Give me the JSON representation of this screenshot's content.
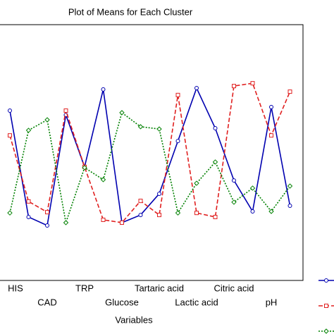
{
  "chart_data": {
    "type": "line",
    "title": "Plot of Means for Each Cluster",
    "x_label": "Variables",
    "categories": [
      "HIS",
      null,
      "CAD",
      null,
      "TRP",
      null,
      "Glucose",
      null,
      "Tartaric acid",
      null,
      "Lactic acid",
      null,
      "Citric acid",
      null,
      "pH",
      null
    ],
    "series": [
      {
        "color": "#0000b0",
        "dash": "solid",
        "marker": "circle",
        "values": [
          6.64,
          2.48,
          2.15,
          6.47,
          4.44,
          7.47,
          2.26,
          2.56,
          3.39,
          5.45,
          7.52,
          5.95,
          3.91,
          2.7,
          6.78,
          2.92
        ]
      },
      {
        "color": "#e02020",
        "dash": "dashed",
        "marker": "square",
        "values": [
          5.67,
          3.09,
          2.67,
          6.64,
          4.44,
          2.37,
          2.26,
          3.11,
          2.56,
          7.25,
          2.64,
          2.48,
          7.6,
          7.71,
          5.67,
          7.38
        ]
      },
      {
        "color": "#008000",
        "dash": "dotted",
        "marker": "diamond",
        "values": [
          2.64,
          5.87,
          6.28,
          2.26,
          4.41,
          3.94,
          6.56,
          6.01,
          5.92,
          2.64,
          3.8,
          4.63,
          3.06,
          3.61,
          2.7,
          3.69
        ]
      }
    ],
    "ylim": [
      0,
      10
    ]
  }
}
